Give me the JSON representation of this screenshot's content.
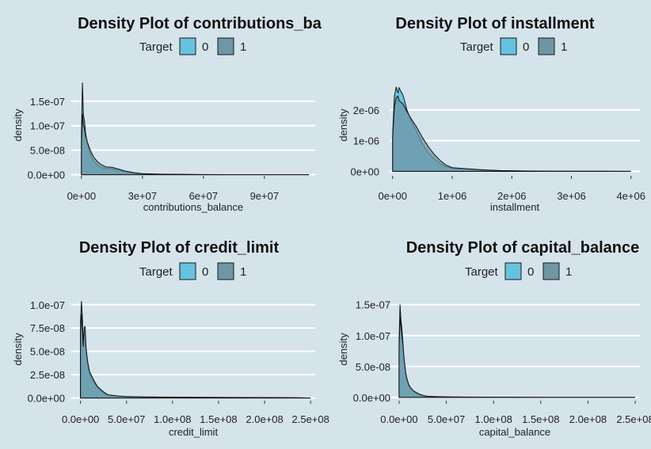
{
  "colors": {
    "background": "#d5e4eb",
    "target_0": "#66c2e0",
    "target_1": "#6f96a3",
    "overlap": "#3d8ea6",
    "grid": "#ffffff"
  },
  "chart_data": [
    {
      "type": "area",
      "title": "Density Plot of contributions_ba",
      "legend": {
        "title": "Target",
        "placement": "top",
        "entries": [
          "0",
          "1"
        ]
      },
      "xlabel": "contributions_balance",
      "ylabel": "density",
      "xlim": [
        -5000000,
        115000000
      ],
      "ylim": [
        -1.2e-08,
        1.95e-07
      ],
      "xticks": [
        0,
        30000000,
        60000000,
        90000000
      ],
      "xtick_labels": [
        "0e+00",
        "3e+07",
        "6e+07",
        "9e+07"
      ],
      "yticks": [
        0,
        5e-08,
        1e-07,
        1.5e-07
      ],
      "ytick_labels": [
        "0.0e+00",
        "5.0e-08",
        "1.0e-07",
        "1.5e-07"
      ],
      "grid": true,
      "series": [
        {
          "name": "0",
          "x": [
            0,
            500000,
            1000000,
            1500000,
            2000000,
            3000000,
            4000000,
            5000000,
            6000000,
            8000000,
            10000000,
            12000000,
            15000000,
            18000000,
            22000000,
            26000000,
            30000000,
            40000000,
            50000000,
            60000000,
            70000000,
            80000000,
            90000000,
            100000000,
            112000000
          ],
          "y": [
            8e-08,
            1.88e-07,
            1.2e-07,
            1.1e-07,
            8.5e-08,
            6.2e-08,
            4.8e-08,
            3.6e-08,
            2.8e-08,
            1.9e-08,
            1.4e-08,
            1.3e-08,
            1.2e-08,
            1e-08,
            6e-09,
            3e-09,
            1.5e-09,
            8e-10,
            4e-10,
            2e-10,
            1e-10,
            5e-11,
            2e-11,
            1e-11,
            0
          ]
        },
        {
          "name": "1",
          "x": [
            0,
            500000,
            1000000,
            1500000,
            2000000,
            3000000,
            4000000,
            5000000,
            6000000,
            8000000,
            10000000,
            12000000,
            15000000,
            18000000,
            22000000,
            26000000,
            30000000,
            40000000,
            50000000,
            60000000,
            70000000,
            80000000,
            90000000,
            100000000,
            112000000
          ],
          "y": [
            6e-08,
            1.25e-07,
            1e-07,
            9.5e-08,
            8e-08,
            6.6e-08,
            5.4e-08,
            4.4e-08,
            3.6e-08,
            2.6e-08,
            2e-08,
            1.6e-08,
            1.5e-08,
            1.2e-08,
            7e-09,
            4e-09,
            2e-09,
            1e-09,
            5e-10,
            3e-10,
            1.5e-10,
            8e-11,
            4e-11,
            2e-11,
            0
          ]
        }
      ]
    },
    {
      "type": "area",
      "title": "Density Plot of installment",
      "legend": {
        "title": "Target",
        "placement": "top",
        "entries": [
          "0",
          "1"
        ]
      },
      "xlabel": "installment",
      "ylabel": "density",
      "xlim": [
        -50000,
        4150000
      ],
      "ylim": [
        -3e-07,
        3e-06
      ],
      "xticks": [
        0,
        1000000,
        2000000,
        3000000,
        4000000
      ],
      "xtick_labels": [
        "0e+00",
        "1e+06",
        "2e+06",
        "3e+06",
        "4e+06"
      ],
      "yticks": [
        0,
        1e-06,
        2e-06
      ],
      "ytick_labels": [
        "0e+00",
        "1e-06",
        "2e-06"
      ],
      "grid": true,
      "series": [
        {
          "name": "0",
          "x": [
            0,
            30000,
            60000,
            90000,
            110000,
            140000,
            170000,
            200000,
            240000,
            300000,
            400000,
            500000,
            600000,
            700000,
            800000,
            900000,
            1000000,
            1200000,
            1500000,
            1800000,
            2200000,
            2600000,
            3000000,
            3500000,
            4000000
          ],
          "y": [
            1.2e-06,
            2.45e-06,
            2.75e-06,
            2.55e-06,
            2.72e-06,
            2.6e-06,
            2.5e-06,
            2.3e-06,
            2e-06,
            1.7e-06,
            1.3e-06,
            9e-07,
            6e-07,
            4e-07,
            2.5e-07,
            1.5e-07,
            1e-07,
            8e-08,
            4e-08,
            2e-08,
            1e-08,
            5e-09,
            2e-09,
            1e-09,
            0
          ]
        },
        {
          "name": "1",
          "x": [
            0,
            30000,
            60000,
            90000,
            110000,
            140000,
            170000,
            200000,
            240000,
            300000,
            400000,
            500000,
            600000,
            700000,
            800000,
            900000,
            1000000,
            1200000,
            1500000,
            1800000,
            2200000,
            2600000,
            3000000,
            3500000,
            4000000
          ],
          "y": [
            1.1e-06,
            2.1e-06,
            2.4e-06,
            2.45e-06,
            2.3e-06,
            2.25e-06,
            2.2e-06,
            2.1e-06,
            1.95e-06,
            1.75e-06,
            1.45e-06,
            1.1e-06,
            8e-07,
            5.5e-07,
            3.5e-07,
            2e-07,
            1.2e-07,
            9e-08,
            5e-08,
            2.5e-08,
            1.2e-08,
            6e-09,
            3e-09,
            1e-09,
            0
          ]
        }
      ]
    },
    {
      "type": "area",
      "title": "Density Plot of credit_limit",
      "legend": {
        "title": "Target",
        "placement": "top",
        "entries": [
          "0",
          "1"
        ]
      },
      "xlabel": "credit_limit",
      "ylabel": "density",
      "xlim": [
        -10000000,
        255000000
      ],
      "ylim": [
        -8e-09,
        1.1e-07
      ],
      "xticks": [
        0,
        50000000,
        100000000,
        150000000,
        200000000,
        250000000
      ],
      "xtick_labels": [
        "0.0e+00",
        "5.0e+07",
        "1.0e+08",
        "1.5e+08",
        "2.0e+08",
        "2.5e+08"
      ],
      "yticks": [
        0,
        2.5e-08,
        5e-08,
        7.5e-08,
        1e-07
      ],
      "ytick_labels": [
        "0.0e+00",
        "2.5e-08",
        "5.0e-08",
        "7.5e-08",
        "1.0e-07"
      ],
      "grid": true,
      "series": [
        {
          "name": "0",
          "x": [
            0,
            1000000,
            2000000,
            3000000,
            4000000,
            5000000,
            6000000,
            7000000,
            8000000,
            10000000,
            12000000,
            15000000,
            18000000,
            22000000,
            26000000,
            30000000,
            40000000,
            50000000,
            70000000,
            100000000,
            130000000,
            160000000,
            200000000,
            230000000,
            250000000
          ],
          "y": [
            8e-08,
            1.04e-07,
            8.8e-08,
            6e-08,
            7.2e-08,
            6.8e-08,
            5e-08,
            4.2e-08,
            3.5e-08,
            2.6e-08,
            2.2e-08,
            1.6e-08,
            1.2e-08,
            8e-09,
            5e-09,
            3e-09,
            2e-09,
            1.5e-09,
            1e-09,
            8e-10,
            6e-10,
            5e-10,
            4e-10,
            3e-10,
            0
          ]
        },
        {
          "name": "1",
          "x": [
            0,
            1000000,
            2000000,
            3000000,
            4000000,
            5000000,
            6000000,
            7000000,
            8000000,
            10000000,
            12000000,
            15000000,
            18000000,
            22000000,
            26000000,
            30000000,
            40000000,
            50000000,
            70000000,
            100000000,
            130000000,
            160000000,
            200000000,
            230000000,
            250000000
          ],
          "y": [
            7e-08,
            9e-08,
            7.5e-08,
            5.5e-08,
            7.5e-08,
            7.7e-08,
            5.5e-08,
            4.5e-08,
            3.8e-08,
            2.8e-08,
            2.4e-08,
            1.8e-08,
            1.3e-08,
            9e-09,
            6e-09,
            3.5e-09,
            2.2e-09,
            1.6e-09,
            1.1e-09,
            9e-10,
            7e-10,
            6e-10,
            5e-10,
            3e-10,
            0
          ]
        }
      ]
    },
    {
      "type": "area",
      "title": "Density Plot of capital_balance",
      "legend": {
        "title": "Target",
        "placement": "top",
        "entries": [
          "0",
          "1"
        ]
      },
      "xlabel": "capital_balance",
      "ylabel": "density",
      "xlim": [
        -10000000,
        255000000
      ],
      "ylim": [
        -1.3e-08,
        1.65e-07
      ],
      "xticks": [
        0,
        50000000,
        100000000,
        150000000,
        200000000,
        250000000
      ],
      "xtick_labels": [
        "0.0e+00",
        "5.0e+07",
        "1.0e+08",
        "1.5e+08",
        "2.0e+08",
        "2.5e+08"
      ],
      "yticks": [
        0,
        5e-08,
        1e-07,
        1.5e-07
      ],
      "ytick_labels": [
        "0.0e+00",
        "5.0e-08",
        "1.0e-07",
        "1.5e-07"
      ],
      "grid": true,
      "series": [
        {
          "name": "0",
          "x": [
            0,
            1000000,
            2000000,
            3000000,
            4000000,
            5000000,
            6000000,
            7000000,
            8000000,
            10000000,
            12000000,
            15000000,
            18000000,
            22000000,
            26000000,
            30000000,
            40000000,
            50000000,
            70000000,
            100000000,
            130000000,
            160000000,
            200000000,
            230000000,
            250000000
          ],
          "y": [
            9e-08,
            1.5e-07,
            1.25e-07,
            1.1e-07,
            9e-08,
            6.5e-08,
            5e-08,
            3.8e-08,
            3e-08,
            2e-08,
            1.5e-08,
            1e-08,
            7e-09,
            4e-09,
            2.5e-09,
            1.5e-09,
            1e-09,
            7e-10,
            5e-10,
            4e-10,
            3e-10,
            2e-10,
            2e-10,
            1e-10,
            0
          ]
        },
        {
          "name": "1",
          "x": [
            0,
            1000000,
            2000000,
            3000000,
            4000000,
            5000000,
            6000000,
            7000000,
            8000000,
            10000000,
            12000000,
            15000000,
            18000000,
            22000000,
            26000000,
            30000000,
            40000000,
            50000000,
            70000000,
            100000000,
            130000000,
            160000000,
            200000000,
            230000000,
            250000000
          ],
          "y": [
            8e-08,
            1.3e-07,
            1.15e-07,
            1e-07,
            8.5e-08,
            6.8e-08,
            5.3e-08,
            4e-08,
            3.2e-08,
            2.2e-08,
            1.6e-08,
            1.1e-08,
            8e-09,
            5e-09,
            3e-09,
            1.8e-09,
            1.2e-09,
            8e-10,
            6e-10,
            4e-10,
            3e-10,
            2e-10,
            2e-10,
            1e-10,
            0
          ]
        }
      ]
    }
  ]
}
